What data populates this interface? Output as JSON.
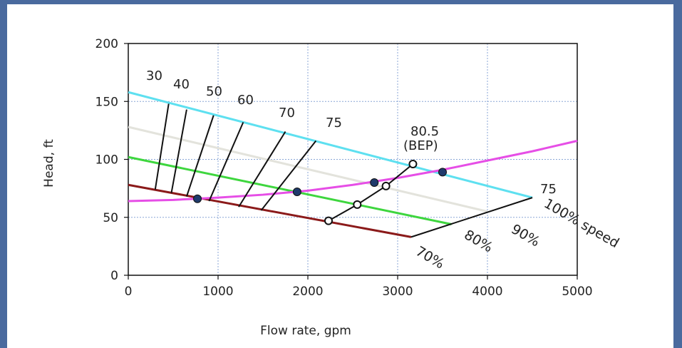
{
  "chart_data": {
    "type": "line",
    "title": "",
    "xlabel": "Flow rate, gpm",
    "ylabel": "Head, ft",
    "xlim": [
      0,
      5000
    ],
    "ylim": [
      0,
      200
    ],
    "xticks": [
      "0",
      "1000",
      "2000",
      "3000",
      "4000",
      "5000"
    ],
    "yticks": [
      "0",
      "50",
      "100",
      "150",
      "200"
    ],
    "grid": "dotted",
    "pump_curves": [
      {
        "label": "100% speed",
        "color": "#5ee0f0",
        "points": [
          [
            0,
            158
          ],
          [
            4500,
            67
          ]
        ]
      },
      {
        "label": "90%",
        "color": "#e3e3dc",
        "points": [
          [
            0,
            128
          ],
          [
            4000,
            55
          ]
        ]
      },
      {
        "label": "80%",
        "color": "#3ed63e",
        "points": [
          [
            0,
            102
          ],
          [
            3600,
            44
          ]
        ]
      },
      {
        "label": "70%",
        "color": "#8b1a1a",
        "points": [
          [
            0,
            78
          ],
          [
            3150,
            33
          ]
        ]
      }
    ],
    "system_curve": {
      "color": "#e64ee6",
      "points": [
        [
          0,
          64
        ],
        [
          500,
          65
        ],
        [
          1000,
          67
        ],
        [
          1500,
          69.5
        ],
        [
          2000,
          73
        ],
        [
          2500,
          78
        ],
        [
          3000,
          84
        ],
        [
          3500,
          91
        ],
        [
          4000,
          99
        ],
        [
          4500,
          107
        ],
        [
          5000,
          116
        ]
      ]
    },
    "efficiency_lines": [
      {
        "label": "30",
        "points": [
          [
            300,
            74
          ],
          [
            450,
            148
          ]
        ]
      },
      {
        "label": "40",
        "points": [
          [
            480,
            71
          ],
          [
            650,
            143
          ]
        ]
      },
      {
        "label": "50",
        "points": [
          [
            650,
            68
          ],
          [
            950,
            138
          ]
        ]
      },
      {
        "label": "60",
        "points": [
          [
            900,
            64
          ],
          [
            1280,
            132
          ]
        ]
      },
      {
        "label": "70",
        "points": [
          [
            1230,
            59
          ],
          [
            1750,
            124
          ]
        ]
      },
      {
        "label": "75",
        "points": [
          [
            1480,
            56
          ],
          [
            2090,
            116
          ]
        ]
      },
      {
        "label": "80.5",
        "label_line2": "(BEP)",
        "points": [
          [
            2230,
            47
          ],
          [
            2550,
            61
          ],
          [
            2870,
            77
          ],
          [
            3170,
            96
          ]
        ]
      },
      {
        "label": "75",
        "points": [
          [
            3150,
            33
          ],
          [
            4500,
            67
          ]
        ]
      }
    ],
    "operating_points": [
      [
        770,
        66
      ],
      [
        1880,
        72
      ],
      [
        2740,
        80
      ],
      [
        3500,
        89
      ]
    ],
    "bep_points": [
      [
        2230,
        47
      ],
      [
        2550,
        61
      ],
      [
        2870,
        77
      ],
      [
        3170,
        96
      ]
    ],
    "speed_labels": [
      "100% speed",
      "90%",
      "80%",
      "70%"
    ]
  }
}
